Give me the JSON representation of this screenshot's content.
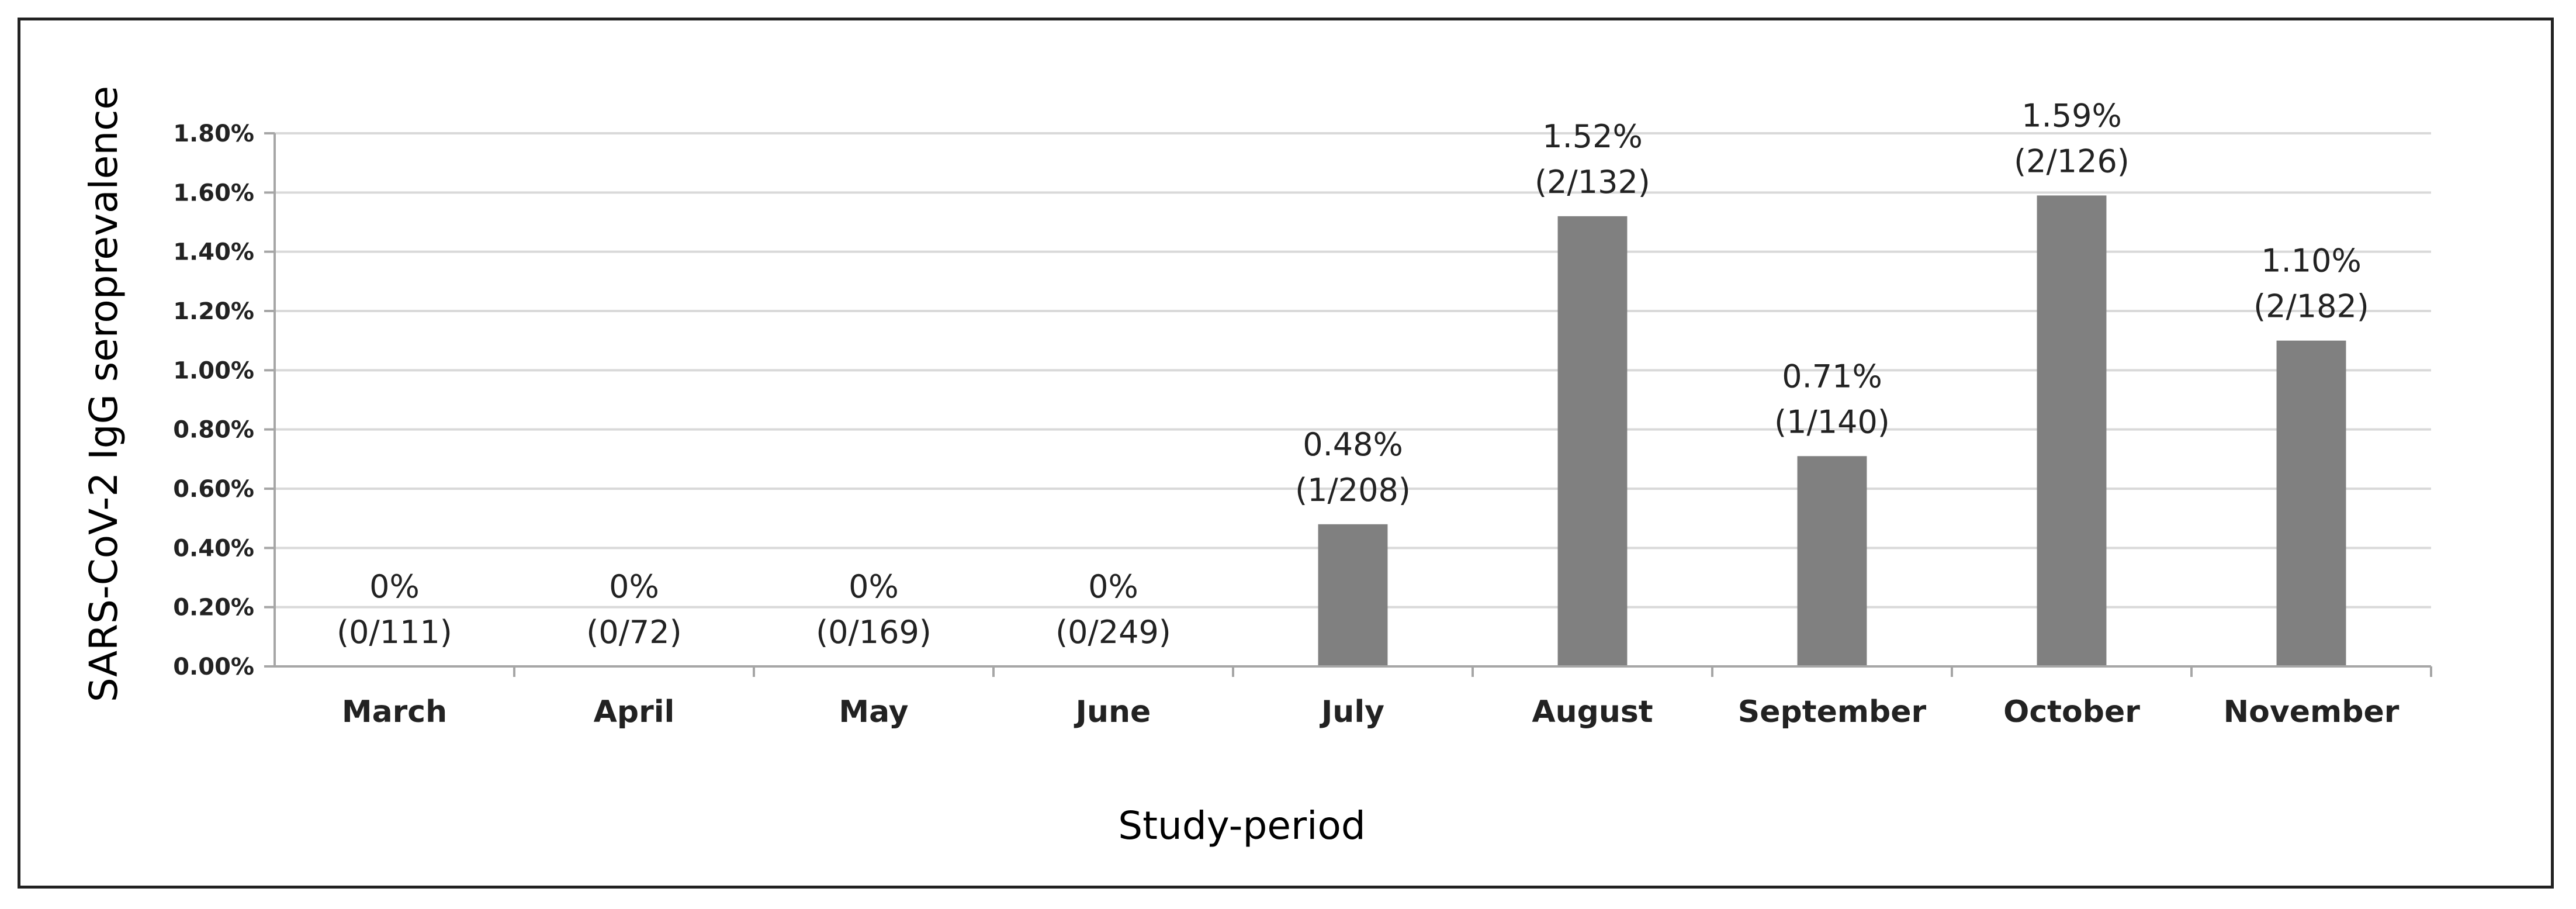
{
  "chart_data": {
    "type": "bar",
    "title": "",
    "xlabel": "Study-period",
    "ylabel": "SARS-CoV-2 IgG seroprevalence",
    "categories": [
      "March",
      "April",
      "May",
      "June",
      "July",
      "August",
      "September",
      "October",
      "November"
    ],
    "values": [
      0,
      0,
      0,
      0,
      0.48,
      1.52,
      0.71,
      1.59,
      1.1
    ],
    "data_labels": [
      {
        "pct": "0%",
        "ratio": "(0/111)"
      },
      {
        "pct": "0%",
        "ratio": "(0/72)"
      },
      {
        "pct": "0%",
        "ratio": "(0/169)"
      },
      {
        "pct": "0%",
        "ratio": "(0/249)"
      },
      {
        "pct": "0.48%",
        "ratio": "(1/208)"
      },
      {
        "pct": "1.52%",
        "ratio": "(2/132)"
      },
      {
        "pct": "0.71%",
        "ratio": "(1/140)"
      },
      {
        "pct": "1.59%",
        "ratio": "(2/126)"
      },
      {
        "pct": "1.10%",
        "ratio": "(2/182)"
      }
    ],
    "ylim": [
      0,
      1.8
    ],
    "yticks": [
      "0.00%",
      "0.20%",
      "0.40%",
      "0.60%",
      "0.80%",
      "1.00%",
      "1.20%",
      "1.40%",
      "1.60%",
      "1.80%"
    ],
    "grid": true,
    "bar_color": "#808080",
    "grid_color": "#d9d9d9",
    "axis_color": "#a6a6a6"
  }
}
